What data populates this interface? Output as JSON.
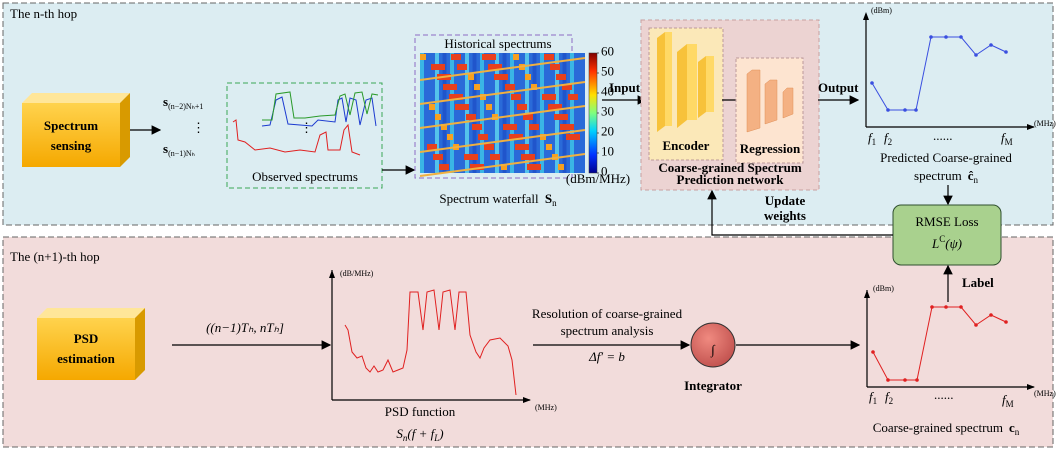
{
  "top_panel": {
    "title": "The n-th hop",
    "sensing_box": [
      "Spectrum",
      "sensing"
    ],
    "samples": [
      {
        "symbol": "s",
        "subscript": "(n−2)Nₕ+1"
      },
      {
        "symbol": "s",
        "subscript": "(n−1)Nₕ"
      }
    ],
    "observed_caption": "Observed spectrums",
    "historical_label": "Historical spectrums",
    "colorbar": {
      "ticks": [
        0,
        10,
        20,
        30,
        40,
        50,
        60
      ],
      "unit": "(dBm/MHz)"
    },
    "waterfall_caption": {
      "text": "Spectrum waterfall",
      "symbol": "S",
      "subscript": "n"
    },
    "input_label": "Input",
    "network": {
      "encoder": "Encoder",
      "regression": "Regression",
      "caption": [
        "Coarse-grained Spectrum",
        "Prediction network"
      ]
    },
    "output_label": "Output",
    "predicted_chart": {
      "y_unit": "(dBm)",
      "x_unit": "(MHz)",
      "x_labels": [
        {
          "symbol": "f",
          "subscript": "1"
        },
        {
          "symbol": "f",
          "subscript": "2"
        },
        {
          "symbol": "......"
        },
        {
          "symbol": "f",
          "subscript": "M"
        }
      ],
      "caption_line1": "Predicted Coarse-grained",
      "caption_line2": {
        "text": "spectrum",
        "symbol": "ĉ",
        "subscript": "n"
      }
    },
    "update_label": [
      "Update",
      "weights"
    ],
    "loss": {
      "title": "RMSE Loss",
      "symbol": "L",
      "superscript": "C",
      "argument": "(ψ)"
    },
    "label_arrow": "Label"
  },
  "bottom_panel": {
    "title": "The (n+1)-th hop",
    "psd_box": [
      "PSD",
      "estimation"
    ],
    "interval": "((n−1)Tₕ, nTₕ]",
    "psd_chart": {
      "y_unit": "(dB/MHz)",
      "x_unit": "(MHz)",
      "caption": "PSD function",
      "formula": {
        "symbol": "S",
        "subscript": "n",
        "argument": "(f + f",
        "argument_subscript": "L",
        "close": ")"
      }
    },
    "resolution": [
      "Resolution of coarse-grained",
      "spectrum analysis"
    ],
    "delta": "Δf′ = b",
    "integrator_symbol": "∫",
    "integrator": "Integrator",
    "coarse_chart": {
      "y_unit": "(dBm)",
      "x_unit": "(MHz)",
      "x_labels": [
        {
          "symbol": "f",
          "subscript": "1"
        },
        {
          "symbol": "f",
          "subscript": "2"
        },
        {
          "symbol": "......"
        },
        {
          "symbol": "f",
          "subscript": "M"
        }
      ],
      "caption": {
        "text": "Coarse-grained spectrum",
        "symbol": "c",
        "subscript": "n"
      }
    }
  }
}
